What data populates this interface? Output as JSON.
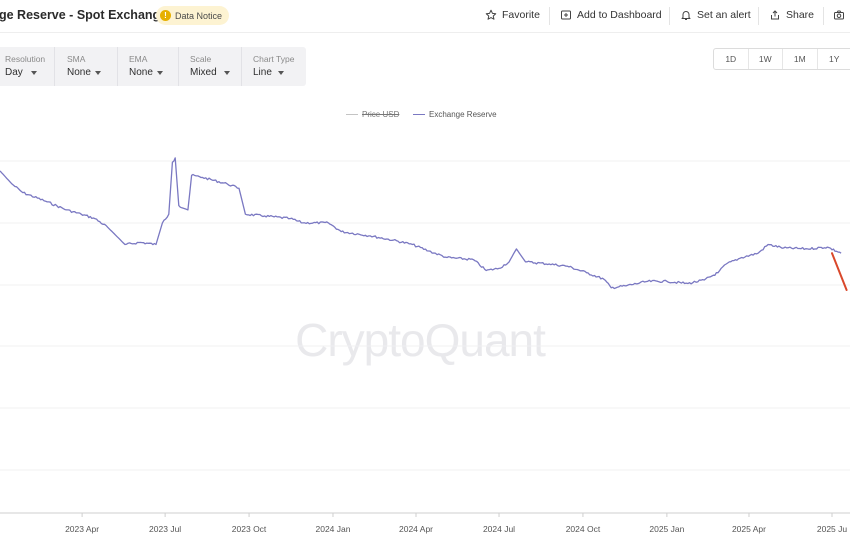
{
  "header": {
    "title": "ge Reserve - Spot Exchanges",
    "notice_icon": "!",
    "notice_label": "Data Notice",
    "actions": {
      "favorite": "Favorite",
      "add_dashboard": "Add to Dashboard",
      "alert": "Set an alert",
      "share": "Share"
    }
  },
  "controls": {
    "resolution": {
      "label": "Resolution",
      "value": "Day"
    },
    "sma": {
      "label": "SMA",
      "value": "None"
    },
    "ema": {
      "label": "EMA",
      "value": "None"
    },
    "scale": {
      "label": "Scale",
      "value": "Mixed"
    },
    "chart_type": {
      "label": "Chart Type",
      "value": "Line"
    }
  },
  "ranges": [
    "1D",
    "1W",
    "1M",
    "1Y"
  ],
  "legend": {
    "price": "Price USD",
    "reserve": "Exchange Reserve"
  },
  "watermark": "CryptoQuant",
  "colors": {
    "series": "#7a78c2",
    "price_line_hidden": "#c4c4c4",
    "annotation": "#d9482b",
    "notice_bg": "#fdf3d2",
    "notice_icon": "#e6b000"
  },
  "chart_data": {
    "type": "line",
    "x_axis": "date",
    "x_ticks": [
      "2023 Apr",
      "2023 Jul",
      "2023 Oct",
      "2024 Jan",
      "2024 Apr",
      "2024 Jul",
      "2024 Oct",
      "2025 Jan",
      "2025 Apr",
      "2025 Ju"
    ],
    "y_axis": "no tick labels shown",
    "grid": "horizontal",
    "legend_position": "top-center",
    "series": [
      {
        "name": "Exchange Reserve",
        "points": [
          [
            "2023-01-01",
            0.79
          ],
          [
            "2023-01-14",
            0.76
          ],
          [
            "2023-01-26",
            0.74
          ],
          [
            "2023-02-20",
            0.72
          ],
          [
            "2023-03-15",
            0.7
          ],
          [
            "2023-03-31",
            0.69
          ],
          [
            "2023-04-15",
            0.68
          ],
          [
            "2023-04-29",
            0.66
          ],
          [
            "2023-05-18",
            0.62
          ],
          [
            "2023-06-04",
            0.625
          ],
          [
            "2023-06-21",
            0.62
          ],
          [
            "2023-06-28",
            0.67
          ],
          [
            "2023-07-05",
            0.69
          ],
          [
            "2023-07-09",
            0.81
          ],
          [
            "2023-07-12",
            0.82
          ],
          [
            "2023-07-16",
            0.71
          ],
          [
            "2023-07-26",
            0.7
          ],
          [
            "2023-07-30",
            0.78
          ],
          [
            "2023-08-11",
            0.775
          ],
          [
            "2023-09-07",
            0.76
          ],
          [
            "2023-09-20",
            0.75
          ],
          [
            "2023-09-27",
            0.69
          ],
          [
            "2023-10-18",
            0.686
          ],
          [
            "2023-11-15",
            0.68
          ],
          [
            "2023-11-29",
            0.67
          ],
          [
            "2023-12-27",
            0.67
          ],
          [
            "2024-01-10",
            0.65
          ],
          [
            "2024-02-11",
            0.64
          ],
          [
            "2024-03-07",
            0.63
          ],
          [
            "2024-03-28",
            0.62
          ],
          [
            "2024-04-15",
            0.605
          ],
          [
            "2024-05-05",
            0.59
          ],
          [
            "2024-06-03",
            0.585
          ],
          [
            "2024-06-17",
            0.56
          ],
          [
            "2024-07-01",
            0.565
          ],
          [
            "2024-07-12",
            0.58
          ],
          [
            "2024-07-20",
            0.61
          ],
          [
            "2024-07-30",
            0.58
          ],
          [
            "2024-08-25",
            0.575
          ],
          [
            "2024-09-14",
            0.57
          ],
          [
            "2024-10-05",
            0.555
          ],
          [
            "2024-10-24",
            0.54
          ],
          [
            "2024-11-01",
            0.52
          ],
          [
            "2024-11-18",
            0.525
          ],
          [
            "2024-12-11",
            0.535
          ],
          [
            "2025-01-01",
            0.535
          ],
          [
            "2025-01-24",
            0.53
          ],
          [
            "2025-02-11",
            0.538
          ],
          [
            "2025-02-26",
            0.555
          ],
          [
            "2025-03-07",
            0.575
          ],
          [
            "2025-03-24",
            0.59
          ],
          [
            "2025-04-11",
            0.6
          ],
          [
            "2025-04-22",
            0.62
          ],
          [
            "2025-05-09",
            0.612
          ],
          [
            "2025-06-04",
            0.61
          ],
          [
            "2025-06-26",
            0.614
          ],
          [
            "2025-07-11",
            0.6
          ]
        ]
      }
    ],
    "annotation": {
      "type": "arrow",
      "points": [
        [
          "2025-07-01",
          0.6
        ],
        [
          "2025-07-17",
          0.515
        ]
      ]
    }
  }
}
